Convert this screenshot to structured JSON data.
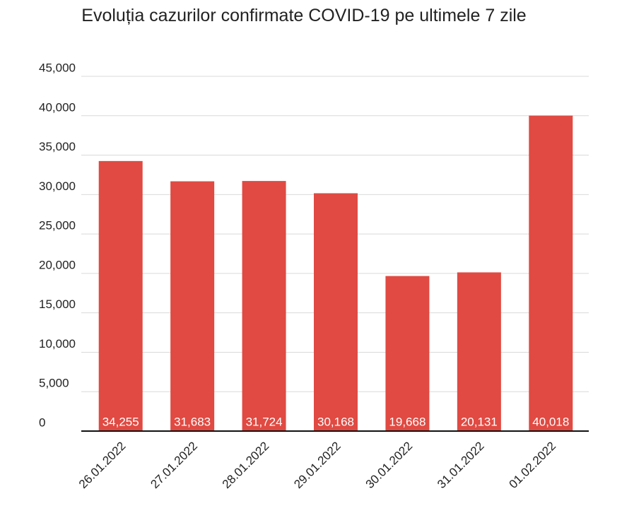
{
  "chart_data": {
    "type": "bar",
    "title": "Evoluția cazurilor confirmate COVID-19 pe ultimele 7 zile",
    "categories": [
      "26.01.2022",
      "27.01.2022",
      "28.01.2022",
      "29.01.2022",
      "30.01.2022",
      "31.01.2022",
      "01.02.2022"
    ],
    "values": [
      34255,
      31683,
      31724,
      30168,
      19668,
      20131,
      40018
    ],
    "value_labels": [
      "34,255",
      "31,683",
      "31,724",
      "30,168",
      "19,668",
      "20,131",
      "40,018"
    ],
    "color": "#e04a42",
    "ylim": [
      0,
      45000
    ],
    "yticks": [
      0,
      {
        "value": 5000,
        "label": "5,000"
      },
      {
        "value": 10000,
        "label": "10,000"
      },
      {
        "value": 15000,
        "label": "15,000"
      },
      {
        "value": 20000,
        "label": "20,000"
      },
      {
        "value": 25000,
        "label": "25,000"
      },
      {
        "value": 30000,
        "label": "30,000"
      },
      {
        "value": 35000,
        "label": "35,000"
      },
      {
        "value": 40000,
        "label": "40,000"
      },
      {
        "value": 45000,
        "label": "45,000"
      }
    ],
    "grid": true
  }
}
